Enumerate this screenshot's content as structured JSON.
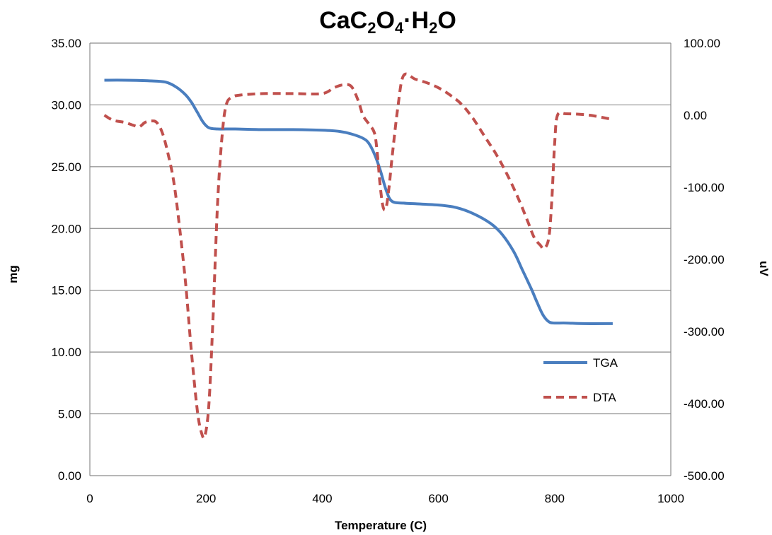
{
  "chart_data": {
    "type": "line",
    "title": {
      "parts": [
        {
          "text": "CaC",
          "sub": false
        },
        {
          "text": "2",
          "sub": true
        },
        {
          "text": "O",
          "sub": false
        },
        {
          "text": "4",
          "sub": true
        },
        {
          "text": "·H",
          "sub": false
        },
        {
          "text": "2",
          "sub": true
        },
        {
          "text": "O",
          "sub": false
        }
      ]
    },
    "xlabel": "Temperature (C)",
    "ylabel": "mg",
    "y2label": "uV",
    "xlim": [
      0,
      1000
    ],
    "xticks": [
      "0",
      "200",
      "400",
      "600",
      "800",
      "1000"
    ],
    "ylim": [
      0,
      35
    ],
    "yticks": [
      "0.00",
      "5.00",
      "10.00",
      "15.00",
      "20.00",
      "25.00",
      "30.00",
      "35.00"
    ],
    "y2lim": [
      -500,
      100
    ],
    "y2ticks": [
      "-500.00",
      "-400.00",
      "-300.00",
      "-200.00",
      "-100.00",
      "0.00",
      "100.00"
    ],
    "grid": true,
    "legend_position": "bottom-right",
    "colors": {
      "TGA": "#4a7ebf",
      "DTA": "#c0504d",
      "grid": "#8c8c8c"
    },
    "series": [
      {
        "name": "TGA",
        "axis": "left",
        "style": "solid",
        "x": [
          25,
          60,
          100,
          130,
          150,
          165,
          175,
          185,
          195,
          205,
          220,
          250,
          300,
          350,
          400,
          430,
          450,
          470,
          480,
          490,
          500,
          510,
          520,
          540,
          560,
          600,
          630,
          660,
          690,
          710,
          730,
          745,
          760,
          770,
          780,
          790,
          800,
          820,
          850,
          900
        ],
        "y": [
          32.0,
          32.0,
          31.95,
          31.85,
          31.4,
          30.8,
          30.2,
          29.4,
          28.6,
          28.15,
          28.05,
          28.05,
          28.0,
          28.0,
          27.95,
          27.85,
          27.65,
          27.3,
          26.9,
          26.0,
          24.7,
          23.1,
          22.2,
          22.05,
          22.0,
          21.9,
          21.7,
          21.2,
          20.4,
          19.5,
          18.1,
          16.6,
          15.1,
          14.0,
          13.0,
          12.45,
          12.35,
          12.35,
          12.3,
          12.3
        ]
      },
      {
        "name": "DTA",
        "axis": "right",
        "style": "dashed",
        "x": [
          25,
          40,
          60,
          75,
          85,
          95,
          105,
          115,
          125,
          135,
          145,
          155,
          165,
          175,
          185,
          192,
          198,
          205,
          212,
          220,
          228,
          235,
          245,
          260,
          300,
          350,
          400,
          420,
          435,
          450,
          462,
          470,
          480,
          490,
          495,
          500,
          505,
          510,
          515,
          520,
          530,
          540,
          560,
          580,
          600,
          620,
          640,
          660,
          680,
          700,
          720,
          740,
          755,
          765,
          775,
          782,
          790,
          795,
          800,
          805,
          820,
          860,
          900
        ],
        "y": [
          0,
          -7,
          -10,
          -14,
          -16,
          -10,
          -8,
          -10,
          -25,
          -55,
          -95,
          -160,
          -235,
          -330,
          -410,
          -440,
          -445,
          -400,
          -280,
          -120,
          -25,
          15,
          25,
          28,
          30,
          30,
          30,
          38,
          42,
          40,
          20,
          0,
          -12,
          -25,
          -55,
          -100,
          -128,
          -128,
          -100,
          -60,
          10,
          55,
          50,
          45,
          38,
          28,
          15,
          -5,
          -30,
          -55,
          -85,
          -120,
          -150,
          -170,
          -180,
          -185,
          -170,
          -120,
          -40,
          0,
          2,
          0,
          -6
        ]
      }
    ]
  }
}
